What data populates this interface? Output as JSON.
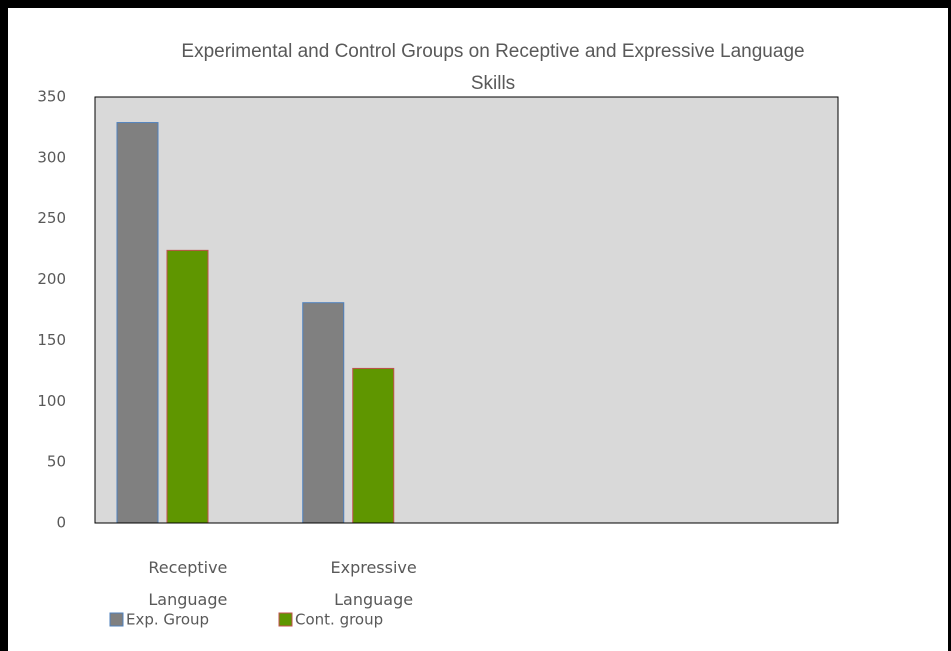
{
  "chart_data": {
    "type": "bar",
    "title": "Experimental and Control Groups on Receptive and Expressive Language Skills",
    "categories": [
      "Receptive Language",
      "Expressive Language",
      null,
      null
    ],
    "series": [
      {
        "name": "Exp. Group",
        "color": "#808080",
        "edge": "#4f81bd",
        "values": [
          329,
          181,
          null,
          null
        ]
      },
      {
        "name": "Cont. group",
        "color": "#5f9600",
        "edge": "#c0504d",
        "values": [
          224,
          127,
          null,
          null
        ]
      }
    ],
    "ylim": [
      0,
      350
    ],
    "yticks": [
      0,
      50,
      100,
      150,
      200,
      250,
      300,
      350
    ]
  }
}
